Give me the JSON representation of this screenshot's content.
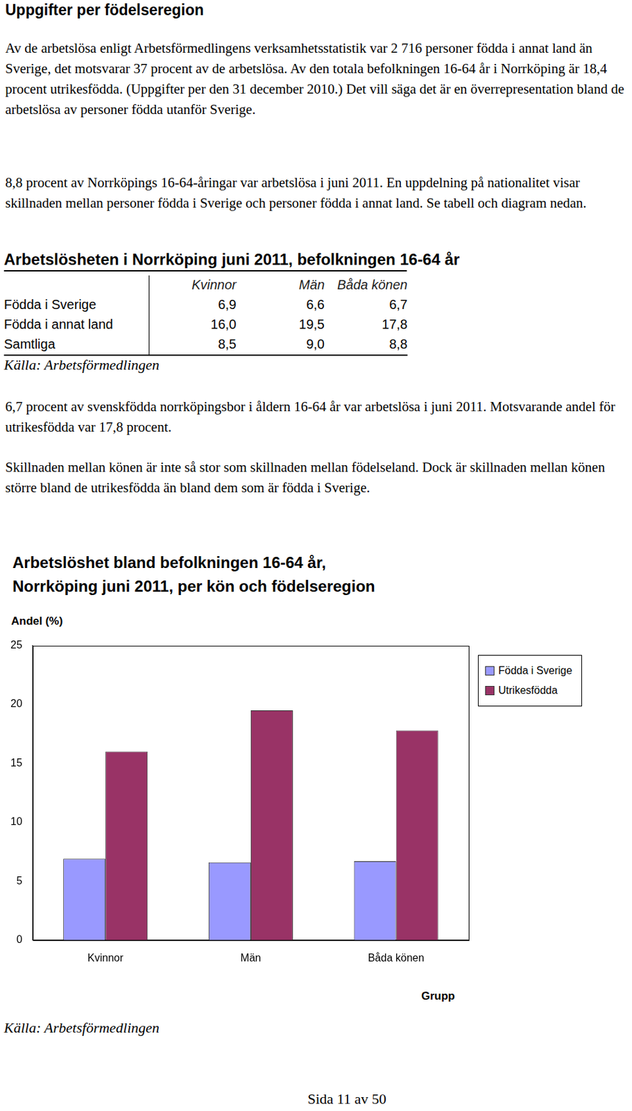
{
  "heading": "Uppgifter per födelseregion",
  "paragraphs": [
    "Av de arbetslösa enligt Arbetsförmedlingens verksamhetsstatistik var 2 716 personer födda i annat land än Sverige, det motsvarar 37 procent av de arbetslösa. Av den totala befolkningen 16-64 år i Norrköping är 18,4 procent utrikesfödda. (Uppgifter per den 31 december 2010.) Det vill säga det är en överrepresentation bland de arbetslösa av personer födda utanför Sverige.",
    "8,8 procent av Norrköpings 16-64-åringar var arbetslösa i juni 2011. En uppdelning på nationalitet visar skillnaden mellan personer födda i Sverige och personer födda i annat land. Se tabell och diagram nedan."
  ],
  "table": {
    "title": "Arbetslösheten i Norrköping juni 2011, befolkningen 16-64 år",
    "header": [
      "Kvinnor",
      "Män",
      "Båda könen"
    ],
    "rows": [
      [
        "Födda i Sverige",
        "6,9",
        "6,6",
        "6,7"
      ],
      [
        "Födda i annat land",
        "16,0",
        "19,5",
        "17,8"
      ],
      [
        "Samtliga",
        "8,5",
        "9,0",
        "8,8"
      ]
    ],
    "source": "Källa: Arbetsförmedlingen"
  },
  "paragraphs_after_table": [
    "6,7 procent av svenskfödda norrköpingsbor i åldern 16-64 år var arbetslösa i juni 2011. Motsvarande andel för utrikesfödda var 17,8 procent.",
    "Skillnaden mellan könen är inte så stor som skillnaden mellan födelseland. Dock är skillnaden mellan könen större bland de utrikesfödda än bland dem som är födda i Sverige."
  ],
  "chart_data": {
    "type": "bar",
    "title": [
      "Arbetslöshet bland befolkningen 16-64 år,",
      "Norrköping juni 2011, per kön och födelseregion"
    ],
    "y_label": "Andel (%)",
    "x_label": "Grupp",
    "categories": [
      "Kvinnor",
      "Män",
      "Båda könen"
    ],
    "series": [
      {
        "name": "Födda i Sverige",
        "color": "#9999ff",
        "values": [
          6.9,
          6.6,
          6.7
        ]
      },
      {
        "name": "Utrikesfödda",
        "color": "#993366",
        "values": [
          16.0,
          19.5,
          17.8
        ]
      }
    ],
    "ylim": [
      0,
      25
    ],
    "yticks": [
      0,
      5,
      10,
      15,
      20,
      25
    ],
    "grid": false,
    "legend": "right"
  },
  "chart_source": "Källa: Arbetsförmedlingen",
  "footer": "Sida 11 av 50"
}
